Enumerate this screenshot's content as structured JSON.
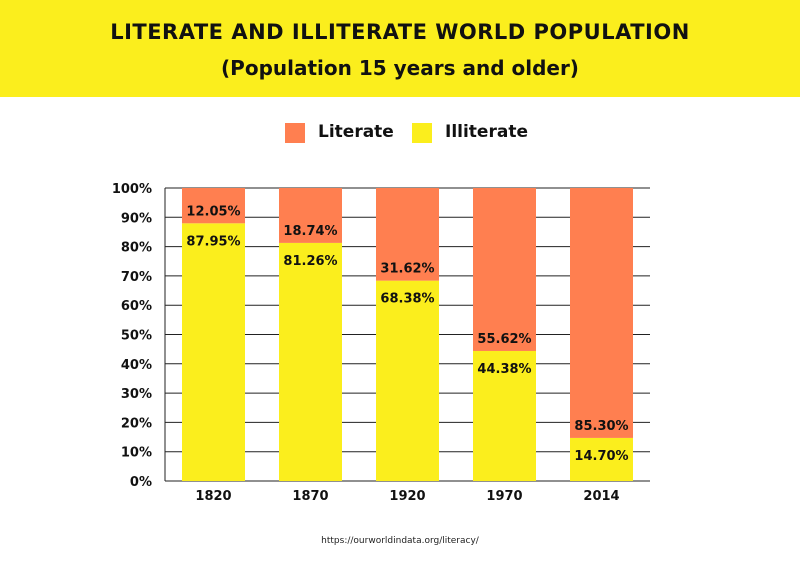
{
  "header": {
    "title": "LITERATE AND ILLITERATE WORLD POPULATION",
    "subtitle": "(Population 15 years and older)"
  },
  "legend": {
    "literate": "Literate",
    "illiterate": "Illiterate"
  },
  "colors": {
    "banner": "#fbee1d",
    "literate": "#ff7f50",
    "illiterate": "#fbee1d"
  },
  "source": "https://ourworldindata.org/literacy/",
  "chart_data": {
    "type": "bar",
    "stacked": true,
    "title": "LITERATE AND ILLITERATE WORLD POPULATION",
    "subtitle": "(Population 15 years and older)",
    "categories": [
      "1820",
      "1870",
      "1920",
      "1970",
      "2014"
    ],
    "series": [
      {
        "name": "Illiterate",
        "values": [
          87.95,
          81.26,
          68.38,
          44.38,
          14.7
        ],
        "labels": [
          "87.95%",
          "81.26%",
          "68.38%",
          "44.38%",
          "14.70%"
        ]
      },
      {
        "name": "Literate",
        "values": [
          12.05,
          18.74,
          31.62,
          55.62,
          85.3
        ],
        "labels": [
          "12.05%",
          "18.74%",
          "31.62%",
          "55.62%",
          "85.30%"
        ]
      }
    ],
    "ylim": [
      0,
      100
    ],
    "yticks": [
      "0%",
      "10%",
      "20%",
      "30%",
      "40%",
      "50%",
      "60%",
      "70%",
      "80%",
      "90%",
      "100%"
    ],
    "grid": true,
    "legend_position": "top-center"
  }
}
